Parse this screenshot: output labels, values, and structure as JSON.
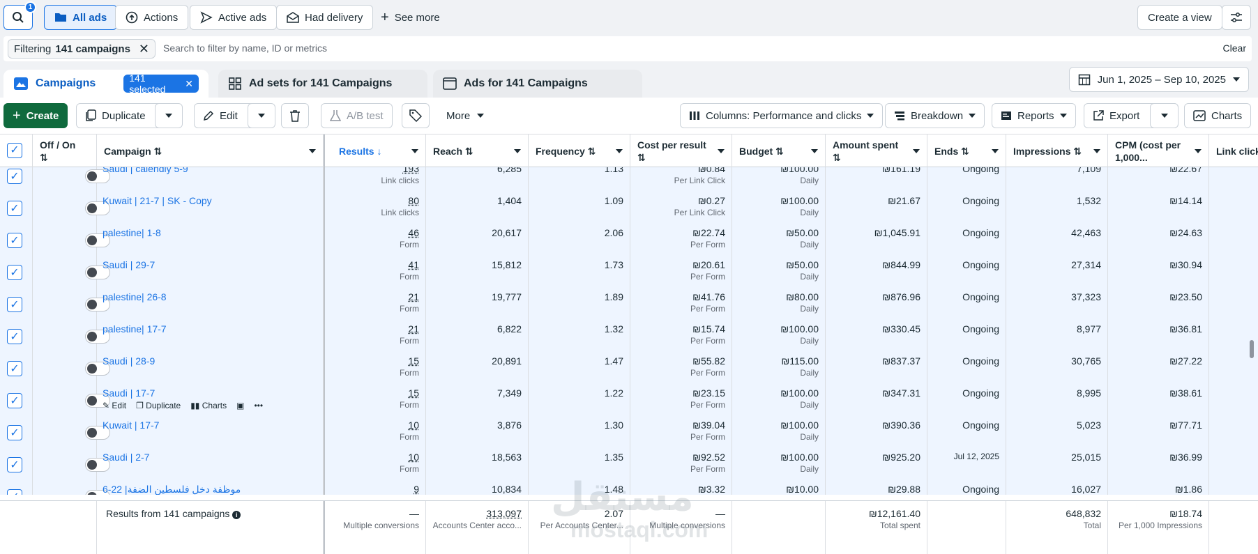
{
  "toolbar": {
    "search_badge": "1",
    "all_ads": "All ads",
    "actions": "Actions",
    "active_ads": "Active ads",
    "had_delivery": "Had delivery",
    "see_more": "See more",
    "create_view": "Create a view"
  },
  "filter": {
    "prefix": "Filtering",
    "value": "141 campaigns",
    "placeholder": "Search to filter by name, ID or metrics",
    "clear": "Clear"
  },
  "tabs": {
    "campaigns": "Campaigns",
    "selected": "141 selected",
    "ad_sets": "Ad sets for 141 Campaigns",
    "ads": "Ads for 141 Campaigns",
    "date_range": "Jun 1, 2025 – Sep 10, 2025"
  },
  "actions": {
    "create": "Create",
    "duplicate": "Duplicate",
    "edit": "Edit",
    "ab_test": "A/B test",
    "more": "More",
    "columns": "Columns: Performance and clicks",
    "breakdown": "Breakdown",
    "reports": "Reports",
    "export": "Export",
    "charts": "Charts"
  },
  "columns": {
    "off_on": "Off / On",
    "campaign": "Campaign",
    "results": "Results",
    "reach": "Reach",
    "frequency": "Frequency",
    "cost_per_result": "Cost per result",
    "budget": "Budget",
    "amount_spent": "Amount spent",
    "ends": "Ends",
    "impressions": "Impressions",
    "cpm": "CPM (cost per 1,000...",
    "link_clicks": "Link click"
  },
  "rows": [
    {
      "name": "Saudi | calendly 5-9",
      "results": "193",
      "result_type": "Link clicks",
      "reach": "6,285",
      "frequency": "1.13",
      "cpr": "₪0.84",
      "cpr_type": "Per Link Click",
      "budget": "₪100.00",
      "budget_type": "Daily",
      "spent": "₪161.19",
      "ends": "Ongoing",
      "impressions": "7,109",
      "cpm": "₪22.67"
    },
    {
      "name": "Kuwait | 21-7 | SK - Copy",
      "results": "80",
      "result_type": "Link clicks",
      "reach": "1,404",
      "frequency": "1.09",
      "cpr": "₪0.27",
      "cpr_type": "Per Link Click",
      "budget": "₪100.00",
      "budget_type": "Daily",
      "spent": "₪21.67",
      "ends": "Ongoing",
      "impressions": "1,532",
      "cpm": "₪14.14"
    },
    {
      "name": "palestine| 1-8",
      "results": "46",
      "result_type": "Form",
      "reach": "20,617",
      "frequency": "2.06",
      "cpr": "₪22.74",
      "cpr_type": "Per Form",
      "budget": "₪50.00",
      "budget_type": "Daily",
      "spent": "₪1,045.91",
      "ends": "Ongoing",
      "impressions": "42,463",
      "cpm": "₪24.63"
    },
    {
      "name": "Saudi | 29-7",
      "results": "41",
      "result_type": "Form",
      "reach": "15,812",
      "frequency": "1.73",
      "cpr": "₪20.61",
      "cpr_type": "Per Form",
      "budget": "₪50.00",
      "budget_type": "Daily",
      "spent": "₪844.99",
      "ends": "Ongoing",
      "impressions": "27,314",
      "cpm": "₪30.94"
    },
    {
      "name": "palestine| 26-8",
      "results": "21",
      "result_type": "Form",
      "reach": "19,777",
      "frequency": "1.89",
      "cpr": "₪41.76",
      "cpr_type": "Per Form",
      "budget": "₪80.00",
      "budget_type": "Daily",
      "spent": "₪876.96",
      "ends": "Ongoing",
      "impressions": "37,323",
      "cpm": "₪23.50"
    },
    {
      "name": "palestine| 17-7",
      "results": "21",
      "result_type": "Form",
      "reach": "6,822",
      "frequency": "1.32",
      "cpr": "₪15.74",
      "cpr_type": "Per Form",
      "budget": "₪100.00",
      "budget_type": "Daily",
      "spent": "₪330.45",
      "ends": "Ongoing",
      "impressions": "8,977",
      "cpm": "₪36.81"
    },
    {
      "name": "Saudi | 28-9",
      "results": "15",
      "result_type": "Form",
      "reach": "20,891",
      "frequency": "1.47",
      "cpr": "₪55.82",
      "cpr_type": "Per Form",
      "budget": "₪115.00",
      "budget_type": "Daily",
      "spent": "₪837.37",
      "ends": "Ongoing",
      "impressions": "30,765",
      "cpm": "₪27.22"
    },
    {
      "name": "Saudi | 17-7",
      "results": "15",
      "result_type": "Form",
      "reach": "7,349",
      "frequency": "1.22",
      "cpr": "₪23.15",
      "cpr_type": "Per Form",
      "budget": "₪100.00",
      "budget_type": "Daily",
      "spent": "₪347.31",
      "ends": "Ongoing",
      "impressions": "8,995",
      "cpm": "₪38.61"
    },
    {
      "name": "Kuwait | 17-7",
      "results": "10",
      "result_type": "Form",
      "reach": "3,876",
      "frequency": "1.30",
      "cpr": "₪39.04",
      "cpr_type": "Per Form",
      "budget": "₪100.00",
      "budget_type": "Daily",
      "spent": "₪390.36",
      "ends": "Ongoing",
      "impressions": "5,023",
      "cpm": "₪77.71"
    },
    {
      "name": "Saudi | 2-7",
      "results": "10",
      "result_type": "Form",
      "reach": "18,563",
      "frequency": "1.35",
      "cpr": "₪92.52",
      "cpr_type": "Per Form",
      "budget": "₪100.00",
      "budget_type": "Daily",
      "spent": "₪925.20",
      "ends": "Jul 12, 2025",
      "impressions": "25,015",
      "cpm": "₪36.99"
    },
    {
      "name": "موظفة دخل فلسطين الضفة| 22-6",
      "results": "9",
      "result_type": "",
      "reach": "10,834",
      "frequency": "1.48",
      "cpr": "₪3.32",
      "cpr_type": "",
      "budget": "₪10.00",
      "budget_type": "",
      "spent": "₪29.88",
      "ends": "Ongoing",
      "impressions": "16,027",
      "cpm": "₪1.86"
    }
  ],
  "row_hover": {
    "edit": "Edit",
    "duplicate": "Duplicate",
    "charts": "Charts"
  },
  "footer": {
    "label": "Results from 141 campaigns",
    "results": "—",
    "results_sub": "Multiple conversions",
    "reach": "313,097",
    "reach_sub": "Accounts Center acco...",
    "frequency": "2.07",
    "frequency_sub": "Per Accounts Center...",
    "cpr": "—",
    "cpr_sub": "Multiple conversions",
    "spent": "₪12,161.40",
    "spent_sub": "Total spent",
    "impressions": "648,832",
    "impressions_sub": "Total",
    "cpm": "₪18.74",
    "cpm_sub": "Per 1,000 Impressions"
  },
  "watermark": {
    "arabic": "مستقل",
    "latin": "mostaql.com"
  }
}
